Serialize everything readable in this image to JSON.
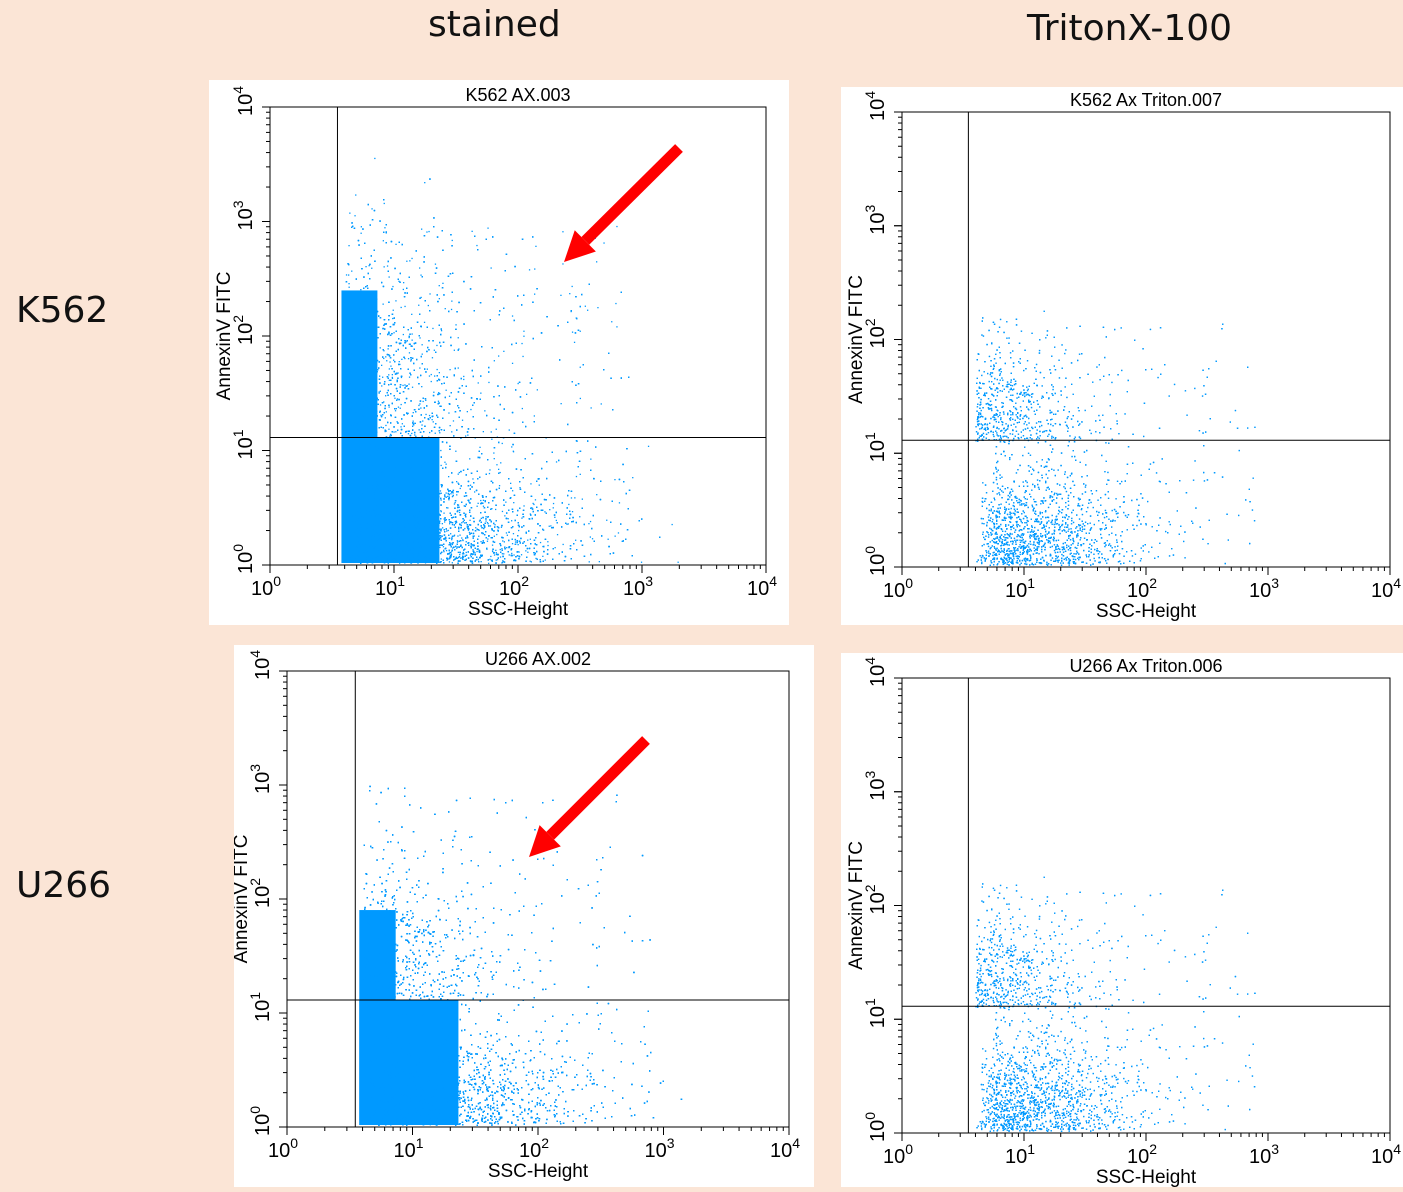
{
  "columns": [
    "stained",
    "TritonX-100"
  ],
  "rows": [
    "K562",
    "U266"
  ],
  "colors": {
    "dots": "#0099ff",
    "arrow": "#ff0000",
    "background": "#fbe5d6"
  },
  "chart_data": [
    {
      "type": "scatter",
      "title": "K562 AX.003",
      "xlabel": "SSC-Height",
      "ylabel": "AnnexinV FITC",
      "xscale": "log",
      "yscale": "log",
      "xlim": [
        1,
        10000
      ],
      "ylim": [
        1,
        10000
      ],
      "xticks": [
        "10^0",
        "10^1",
        "10^2",
        "10^3",
        "10^4"
      ],
      "yticks": [
        "10^0",
        "10^1",
        "10^2",
        "10^3",
        "10^4"
      ],
      "quadrant_gate": {
        "x": 3.5,
        "y": 13
      },
      "annotation": "red-arrow",
      "density": "high"
    },
    {
      "type": "scatter",
      "title": "K562 Ax Triton.007",
      "xlabel": "SSC-Height",
      "ylabel": "AnnexinV FITC",
      "xscale": "log",
      "yscale": "log",
      "xlim": [
        1,
        10000
      ],
      "ylim": [
        1,
        10000
      ],
      "xticks": [
        "10^0",
        "10^1",
        "10^2",
        "10^3",
        "10^4"
      ],
      "yticks": [
        "10^0",
        "10^1",
        "10^2",
        "10^3",
        "10^4"
      ],
      "quadrant_gate": {
        "x": 3.5,
        "y": 13
      },
      "annotation": "",
      "density": "low"
    },
    {
      "type": "scatter",
      "title": "U266 AX.002",
      "xlabel": "SSC-Height",
      "ylabel": "AnnexinV FITC",
      "xscale": "log",
      "yscale": "log",
      "xlim": [
        1,
        10000
      ],
      "ylim": [
        1,
        10000
      ],
      "xticks": [
        "10^0",
        "10^1",
        "10^2",
        "10^3",
        "10^4"
      ],
      "yticks": [
        "10^0",
        "10^1",
        "10^2",
        "10^3",
        "10^4"
      ],
      "quadrant_gate": {
        "x": 3.5,
        "y": 13
      },
      "annotation": "red-arrow",
      "density": "high"
    },
    {
      "type": "scatter",
      "title": "U266 Ax Triton.006",
      "xlabel": "SSC-Height",
      "ylabel": "AnnexinV FITC",
      "xscale": "log",
      "yscale": "log",
      "xlim": [
        1,
        10000
      ],
      "ylim": [
        1,
        10000
      ],
      "xticks": [
        "10^0",
        "10^1",
        "10^2",
        "10^3",
        "10^4"
      ],
      "yticks": [
        "10^0",
        "10^1",
        "10^2",
        "10^3",
        "10^4"
      ],
      "quadrant_gate": {
        "x": 3.5,
        "y": 13
      },
      "annotation": "",
      "density": "low"
    }
  ]
}
